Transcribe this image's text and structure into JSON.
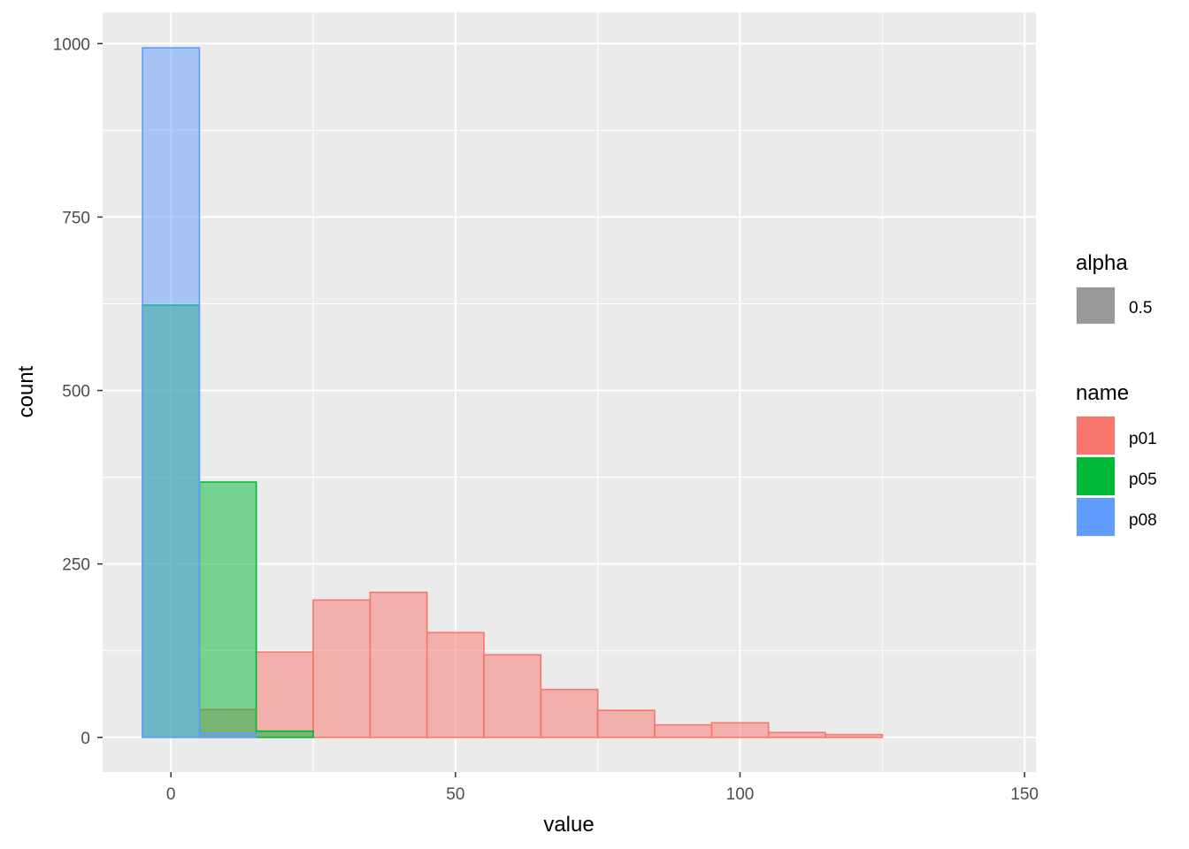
{
  "chart_data": {
    "type": "bar",
    "subtype": "overlaid-histogram",
    "title": "",
    "xlabel": "value",
    "ylabel": "count",
    "xlim": [
      -12,
      152
    ],
    "ylim": [
      -50,
      1045
    ],
    "x_ticks": [
      0,
      50,
      100,
      150
    ],
    "y_ticks": [
      0,
      250,
      500,
      750,
      1000
    ],
    "bin_width": 10,
    "bin_centers": [
      0,
      10,
      20,
      30,
      40,
      50,
      60,
      70,
      80,
      90,
      100,
      110,
      120,
      130,
      140
    ],
    "fill_alpha": 0.5,
    "grid": true,
    "legend_position": "right",
    "series": [
      {
        "name": "p01",
        "color": "#F8766D",
        "values": [
          0,
          40,
          123,
          198,
          209,
          151,
          119,
          69,
          39,
          18,
          21,
          7,
          4,
          0,
          0
        ]
      },
      {
        "name": "p05",
        "color": "#00BA38",
        "values": [
          623,
          368,
          9,
          0,
          0,
          0,
          0,
          0,
          0,
          0,
          0,
          0,
          0,
          0,
          0
        ]
      },
      {
        "name": "p08",
        "color": "#619CFF",
        "values": [
          994,
          6,
          0,
          0,
          0,
          0,
          0,
          0,
          0,
          0,
          0,
          0,
          0,
          0,
          0
        ]
      }
    ],
    "legends": [
      {
        "title": "alpha",
        "entries": [
          {
            "label": "0.5",
            "color": "#999999"
          }
        ]
      },
      {
        "title": "name",
        "entries": [
          {
            "label": "p01",
            "color": "#F8766D"
          },
          {
            "label": "p05",
            "color": "#00BA38"
          },
          {
            "label": "p08",
            "color": "#619CFF"
          }
        ]
      }
    ]
  }
}
